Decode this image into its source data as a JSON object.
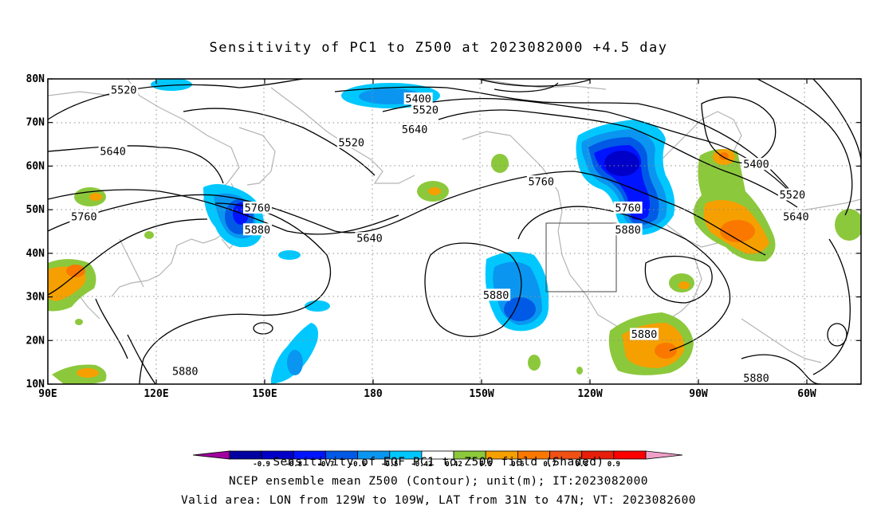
{
  "title": "Sensitivity of PC1 to Z500 at 2023082000 +4.5 day",
  "lat_labels": [
    "80N",
    "70N",
    "60N",
    "50N",
    "40N",
    "30N",
    "20N",
    "10N"
  ],
  "lon_labels": [
    "90E",
    "120E",
    "150E",
    "180",
    "150W",
    "120W",
    "90W",
    "60W"
  ],
  "contour_labels": [
    {
      "text": "5520",
      "lon": 111,
      "lat": 77.5
    },
    {
      "text": "5400",
      "lon": 192.5,
      "lat": 75.5
    },
    {
      "text": "5520",
      "lon": 194.5,
      "lat": 73
    },
    {
      "text": "5640",
      "lon": 191.5,
      "lat": 68.5
    },
    {
      "text": "5520",
      "lon": 174,
      "lat": 65.5
    },
    {
      "text": "5640",
      "lon": 108,
      "lat": 63.5
    },
    {
      "text": "5760",
      "lon": 226.5,
      "lat": 56.5
    },
    {
      "text": "5760",
      "lon": 100,
      "lat": 48.5
    },
    {
      "text": "5760",
      "lon": 148,
      "lat": 50.5
    },
    {
      "text": "5880",
      "lon": 148,
      "lat": 45.5
    },
    {
      "text": "5640",
      "lon": 179,
      "lat": 43.5
    },
    {
      "text": "5880",
      "lon": 214,
      "lat": 30.5
    },
    {
      "text": "5760",
      "lon": 250.5,
      "lat": 50.5
    },
    {
      "text": "5880",
      "lon": 250.5,
      "lat": 45.5
    },
    {
      "text": "5400",
      "lon": 286,
      "lat": 60.5
    },
    {
      "text": "5520",
      "lon": 296,
      "lat": 53.5
    },
    {
      "text": "5640",
      "lon": 297,
      "lat": 48.5
    },
    {
      "text": "5880",
      "lon": 255,
      "lat": 21.5
    },
    {
      "text": "5880",
      "lon": 128,
      "lat": 13
    },
    {
      "text": "5880",
      "lon": 286,
      "lat": 11.5
    }
  ],
  "colorbar": {
    "ticks": [
      "-0.9",
      "-0.8",
      "-0.7",
      "-0.6",
      "-0.5",
      "-0.42",
      "0.42",
      "0.5",
      "0.6",
      "0.7",
      "0.8",
      "0.9"
    ],
    "colors": {
      "extreme_low": "#a000a0",
      "c1": "#0000a0",
      "c2": "#0000c8",
      "c3": "#0014ff",
      "c4": "#005ae6",
      "c5": "#0a96f0",
      "c6": "#00c8ff",
      "neutral": "#ffffff",
      "c7": "#8cc83c",
      "c8": "#f5a000",
      "c9": "#fa7800",
      "c10": "#f05014",
      "c11": "#e61e0a",
      "c12": "#ff0000",
      "extreme_high": "#f0a0c8"
    }
  },
  "captions": {
    "line1": "Sensitivity of EOF PC1 to Z500 field (Shaded)",
    "line2": "NCEP ensemble mean Z500 (Contour); unit(m); IT:2023082000",
    "line3": "Valid area: LON from 129W to 109W, LAT from 31N to 47N; VT: 2023082600"
  }
}
